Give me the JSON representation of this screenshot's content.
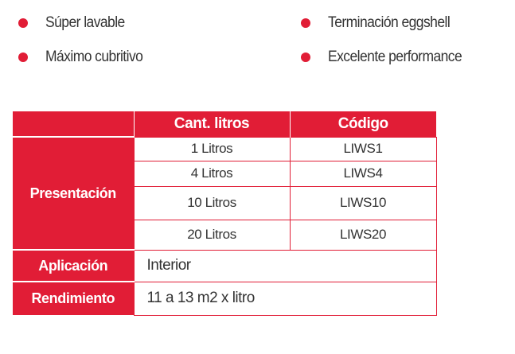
{
  "features": [
    {
      "label": "Súper lavable"
    },
    {
      "label": "Terminación eggshell"
    },
    {
      "label": "Máximo cubritivo"
    },
    {
      "label": "Excelente performance"
    }
  ],
  "table": {
    "headers": {
      "corner": "",
      "liters": "Cant. litros",
      "code": "Código"
    },
    "presentation": {
      "label": "Presentación",
      "rows": [
        {
          "liters": "1 Litros",
          "code": "LIWS1"
        },
        {
          "liters": "4 Litros",
          "code": "LIWS4"
        },
        {
          "liters": "10 Litros",
          "code": "LIWS10"
        },
        {
          "liters": "20 Litros",
          "code": "LIWS20"
        }
      ]
    },
    "application": {
      "label": "Aplicación",
      "value": "Interior"
    },
    "yield": {
      "label": "Rendimiento",
      "value": "11 a 13 m2 x litro"
    }
  },
  "colors": {
    "accent": "#e11d36",
    "text": "#333333"
  }
}
